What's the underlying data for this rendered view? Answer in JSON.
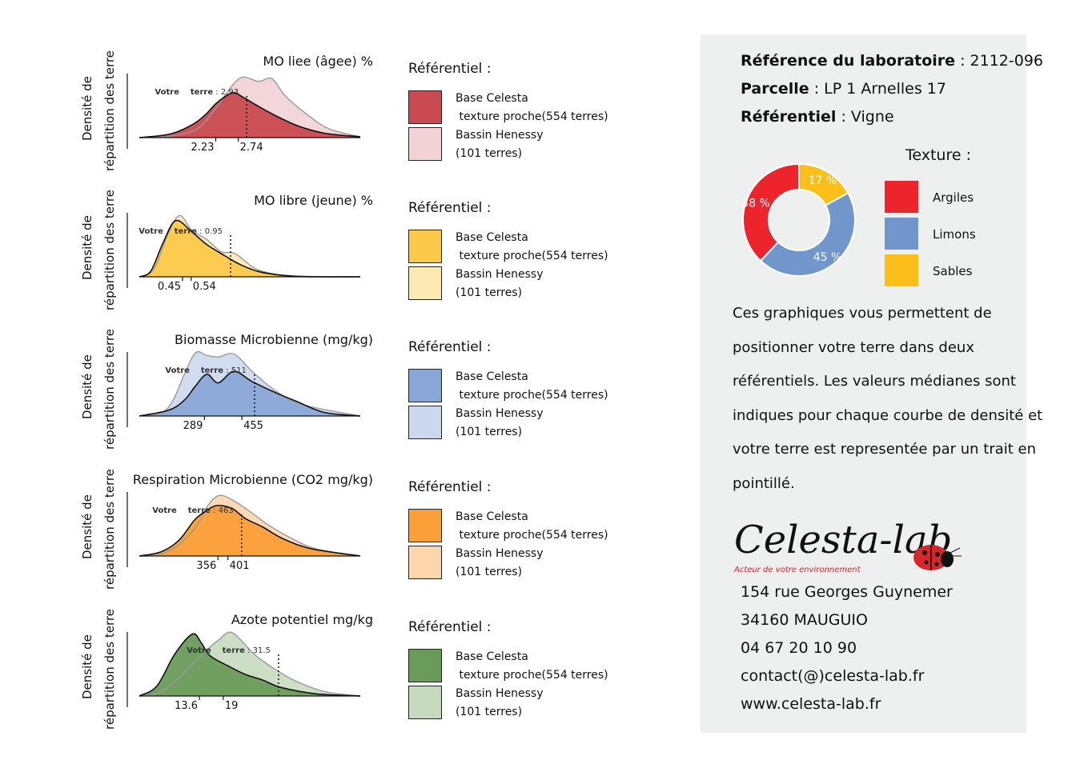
{
  "chart_data": [
    {
      "type": "area",
      "title": "MO liee (âgee) %",
      "ylabel": [
        "Densité de",
        "répartition des terre"
      ],
      "votre": {
        "label": "Votre terre",
        "value": "2.93",
        "x": 2.93
      },
      "medians": [
        {
          "label": "2.23",
          "x": 2.23
        },
        {
          "label": "2.74",
          "x": 2.74
        }
      ],
      "xlim": [
        0.5,
        5.5
      ],
      "series": [
        {
          "name": "Base Celesta texture proche(554 terres)",
          "color": "#c94a50",
          "x": [
            0.5,
            1.2,
            1.7,
            2.0,
            2.25,
            2.6,
            2.85,
            3.15,
            3.6,
            4.1,
            4.7,
            5.5
          ],
          "y": [
            0.0,
            0.05,
            0.18,
            0.32,
            0.48,
            0.62,
            0.56,
            0.45,
            0.3,
            0.16,
            0.06,
            0.01
          ]
        },
        {
          "name": "Bassin Henessy (101 terres)",
          "color": "#f2d2d5",
          "x": [
            0.5,
            1.2,
            1.8,
            2.2,
            2.6,
            2.85,
            3.2,
            3.5,
            3.8,
            4.3,
            4.8,
            5.5
          ],
          "y": [
            0.0,
            0.02,
            0.12,
            0.38,
            0.72,
            0.84,
            0.78,
            0.82,
            0.58,
            0.32,
            0.12,
            0.01
          ]
        }
      ]
    },
    {
      "type": "area",
      "title": "MO libre (jeune) %",
      "ylabel": [
        "Densité de",
        "répartition des terre"
      ],
      "votre": {
        "label": "Votre terre",
        "value": "0.95",
        "x": 0.95
      },
      "medians": [
        {
          "label": "0.45",
          "x": 0.45
        },
        {
          "label": "0.54",
          "x": 0.54
        }
      ],
      "xlim": [
        0.0,
        2.3
      ],
      "series": [
        {
          "name": "Base Celesta texture proche(554 terres)",
          "color": "#fcc94a",
          "x": [
            0.0,
            0.12,
            0.25,
            0.38,
            0.55,
            0.7,
            0.88,
            1.05,
            1.25,
            1.5,
            1.8,
            2.3
          ],
          "y": [
            0.0,
            0.08,
            0.48,
            0.78,
            0.62,
            0.45,
            0.3,
            0.17,
            0.07,
            0.02,
            0.0,
            0.0
          ]
        },
        {
          "name": "Bassin Henessy (101 terres)",
          "color": "#fde9b2",
          "x": [
            0.0,
            0.15,
            0.3,
            0.42,
            0.55,
            0.7,
            0.85,
            1.0,
            1.2,
            1.4,
            1.6,
            2.3
          ],
          "y": [
            0.0,
            0.1,
            0.6,
            0.85,
            0.64,
            0.52,
            0.35,
            0.32,
            0.12,
            0.04,
            0.01,
            0.0
          ]
        }
      ]
    },
    {
      "type": "area",
      "title": "Biomasse Microbienne (mg/kg)",
      "ylabel": [
        "Densité de",
        "répartition des terre"
      ],
      "votre": {
        "label": "Votre terre",
        "value": "511",
        "x": 511
      },
      "medians": [
        {
          "label": "289",
          "x": 289
        },
        {
          "label": "455",
          "x": 455
        }
      ],
      "xlim": [
        0,
        980
      ],
      "series": [
        {
          "name": "Base Celesta texture proche(554 terres)",
          "color": "#8aa6d6",
          "x": [
            0,
            130,
            200,
            250,
            300,
            350,
            420,
            500,
            600,
            700,
            820,
            980
          ],
          "y": [
            0.0,
            0.08,
            0.22,
            0.42,
            0.58,
            0.46,
            0.62,
            0.48,
            0.33,
            0.2,
            0.05,
            0.0
          ]
        },
        {
          "name": "Bassin Henessy (101 terres)",
          "color": "#ccd8ee",
          "x": [
            0,
            100,
            150,
            200,
            250,
            300,
            350,
            420,
            500,
            600,
            720,
            980
          ],
          "y": [
            0.0,
            0.05,
            0.22,
            0.58,
            0.88,
            0.84,
            0.82,
            0.86,
            0.62,
            0.36,
            0.16,
            0.0
          ]
        }
      ]
    },
    {
      "type": "area",
      "title": "Respiration Microbienne (CO2 mg/kg)",
      "ylabel": [
        "Densité de",
        "répartition des terre"
      ],
      "votre": {
        "label": "Votre terre",
        "value": "463",
        "x": 463
      },
      "medians": [
        {
          "label": "356",
          "x": 356
        },
        {
          "label": "401",
          "x": 401
        }
      ],
      "xlim": [
        0,
        1000
      ],
      "series": [
        {
          "name": "Base Celesta texture proche(554 terres)",
          "color": "#fb9f38",
          "x": [
            0,
            100,
            180,
            250,
            300,
            350,
            420,
            480,
            560,
            650,
            780,
            1000
          ],
          "y": [
            0.0,
            0.06,
            0.22,
            0.5,
            0.62,
            0.7,
            0.66,
            0.52,
            0.4,
            0.24,
            0.1,
            0.0
          ]
        },
        {
          "name": "Bassin Henessy (101 terres)",
          "color": "#fdd6ad",
          "x": [
            0,
            100,
            180,
            260,
            310,
            360,
            420,
            500,
            580,
            680,
            800,
            1000
          ],
          "y": [
            0.0,
            0.03,
            0.16,
            0.42,
            0.7,
            0.84,
            0.78,
            0.62,
            0.44,
            0.26,
            0.1,
            0.0
          ]
        }
      ]
    },
    {
      "type": "area",
      "title": "Azote potentiel mg/kg",
      "ylabel": [
        "Densité de",
        "répartition des terre"
      ],
      "votre": {
        "label": "Votre terre",
        "value": "31.5",
        "x": 31.5
      },
      "medians": [
        {
          "label": "13.6",
          "x": 13.6
        },
        {
          "label": "19",
          "x": 19
        }
      ],
      "xlim": [
        0,
        50
      ],
      "series": [
        {
          "name": "Base Celesta texture proche(554 terres)",
          "color": "#6a9b5a",
          "x": [
            0,
            4,
            8,
            12,
            14,
            16,
            20,
            24,
            28,
            32,
            40,
            50
          ],
          "y": [
            0.0,
            0.14,
            0.58,
            0.86,
            0.74,
            0.56,
            0.42,
            0.3,
            0.22,
            0.12,
            0.03,
            0.0
          ]
        },
        {
          "name": "Bassin Henessy (101 terres)",
          "color": "#c6dac0",
          "x": [
            0,
            4,
            8,
            12,
            16,
            18,
            21,
            26,
            30,
            35,
            42,
            50
          ],
          "y": [
            0.0,
            0.03,
            0.2,
            0.44,
            0.68,
            0.78,
            0.88,
            0.58,
            0.4,
            0.22,
            0.06,
            0.0
          ]
        }
      ]
    }
  ],
  "legend": {
    "title": "Référentiel :",
    "items": [
      {
        "line1": "Base Celesta",
        "line2": " texture proche(554 terres)"
      },
      {
        "line1": "Bassin Henessy",
        "line2": "(101 terres)"
      }
    ]
  },
  "info": {
    "lab_ref_label": "Référence du laboratoire",
    "lab_ref_value": " : 2112-096",
    "parcelle_label": "Parcelle",
    "parcelle_value": " : LP 1  Arnelles 17",
    "referentiel_label": "Référentiel",
    "referentiel_value": " : Vigne"
  },
  "texture": {
    "title": "Texture :",
    "slices": [
      {
        "name": "Argiles",
        "value": 38,
        "label": "38 %",
        "color": "#ee242d"
      },
      {
        "name": "Limons",
        "value": 45,
        "label": "45 %",
        "color": "#7096cc"
      },
      {
        "name": "Sables",
        "value": 17,
        "label": "17 %",
        "color": "#fcbe18"
      }
    ]
  },
  "description": "Ces graphiques vous permettent de positionner votre terre dans deux référentiels. Les valeurs médianes sont indiques pour chaque courbe de densité et votre terre est representée par un trait en pointillé.",
  "logo": {
    "main": "Celesta-lab",
    "tagline": "Acteur de votre environnement"
  },
  "contact": {
    "street": "154 rue Georges Guynemer",
    "city": "34160 MAUGUIO",
    "phone": "04 67 20 10 90",
    "email": "contact(@)celesta-lab.fr",
    "web": "www.celesta-lab.fr"
  }
}
